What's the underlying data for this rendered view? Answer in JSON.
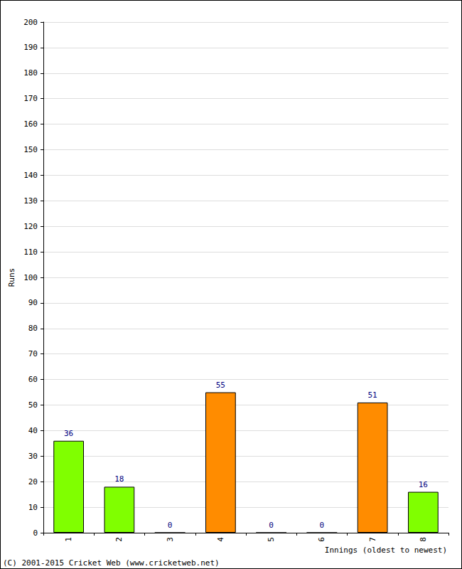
{
  "chart_data": {
    "type": "bar",
    "categories": [
      "1",
      "2",
      "3",
      "4",
      "5",
      "6",
      "7",
      "8"
    ],
    "values": [
      36,
      18,
      0,
      55,
      0,
      0,
      51,
      16
    ],
    "colors": [
      "#80ff00",
      "#80ff00",
      "#80ff00",
      "#ff8c00",
      "#80ff00",
      "#80ff00",
      "#ff8c00",
      "#80ff00"
    ],
    "x_label": "Innings (oldest to newest)",
    "y_label": "Runs",
    "annotations": [
      "(C) 2001-2015 Cricket Web (www.cricketweb.net)"
    ],
    "ylim": [
      0,
      200
    ],
    "yticks": [
      0,
      10,
      20,
      30,
      40,
      50,
      60,
      70,
      80,
      90,
      100,
      110,
      120,
      130,
      140,
      150,
      160,
      170,
      180,
      190,
      200
    ],
    "grid": true,
    "data_labels": true
  }
}
